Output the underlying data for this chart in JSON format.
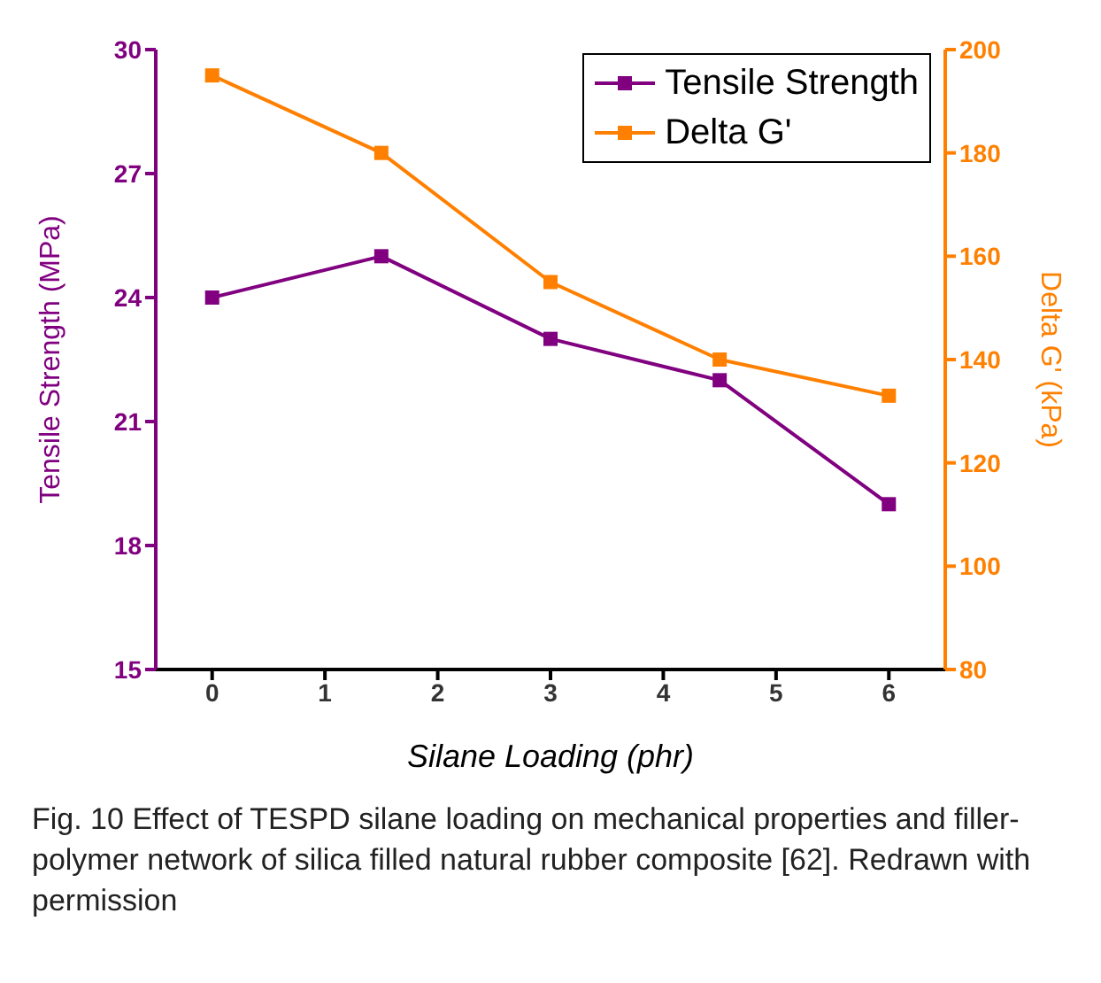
{
  "chart_data": {
    "type": "line",
    "xlabel": "Silane Loading (phr)",
    "ylabel": "Tensile Strength (MPa)",
    "y2label": "Delta G' (kPa)",
    "x": [
      0,
      1.5,
      3,
      4.5,
      6
    ],
    "series": [
      {
        "name": "Tensile Strength",
        "color": "#800080",
        "values": [
          24,
          25,
          23,
          22,
          19
        ]
      },
      {
        "name": "Delta G'",
        "color": "#ff8000",
        "values": [
          195,
          180,
          155,
          140,
          133
        ],
        "axis": "y2"
      }
    ],
    "xlim": [
      -0.5,
      6.5
    ],
    "xticks": [
      0,
      1,
      2,
      3,
      4,
      5,
      6
    ],
    "ylim": [
      15,
      30
    ],
    "yticks": [
      15,
      18,
      21,
      24,
      27,
      30
    ],
    "y2lim": [
      80,
      200
    ],
    "y2ticks": [
      80,
      100,
      120,
      140,
      160,
      180,
      200
    ],
    "legend": "top right",
    "marker": "square",
    "line_style": "solid",
    "grid": false,
    "annotations": [
      "Fig. 10 Effect of TESPD silane loading on mechanical properties and filler-polymer network of silica filled natural rubber composite [62]. Redrawn with permission"
    ]
  }
}
